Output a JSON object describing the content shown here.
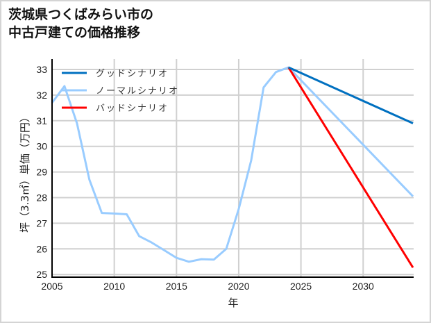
{
  "chart_data": {
    "type": "line",
    "title": "茨城県つくばみらい市の\n中古戸建ての価格推移",
    "title_lines": [
      "茨城県つくばみらい市の",
      "中古戸建ての価格推移"
    ],
    "xlabel": "年",
    "ylabel": "坪（3.3㎡）単価（万円）",
    "xlim": [
      2005,
      2034
    ],
    "ylim": [
      25,
      33
    ],
    "xticks": [
      2005,
      2010,
      2015,
      2020,
      2025,
      2030
    ],
    "yticks": [
      25,
      26,
      27,
      28,
      29,
      30,
      31,
      32,
      33
    ],
    "grid": true,
    "legend_position": "upper left",
    "series": [
      {
        "name": "グッドシナリオ",
        "color": "#0070c0",
        "x": [
          2024,
          2034
        ],
        "values": [
          33.08,
          30.9
        ]
      },
      {
        "name": "ノーマルシナリオ",
        "color": "#99ccff",
        "x": [
          2005,
          2006,
          2007,
          2008,
          2009,
          2010,
          2011,
          2012,
          2013,
          2014,
          2015,
          2016,
          2017,
          2018,
          2019,
          2020,
          2021,
          2022,
          2023,
          2024,
          2034
        ],
        "values": [
          31.7,
          32.35,
          30.9,
          28.7,
          27.4,
          27.38,
          27.35,
          26.5,
          26.25,
          25.95,
          25.65,
          25.5,
          25.6,
          25.58,
          26.0,
          27.55,
          29.45,
          32.3,
          32.9,
          33.08,
          28.05
        ]
      },
      {
        "name": "バッドシナリオ",
        "color": "#ff0000",
        "x": [
          2024,
          2034
        ],
        "values": [
          33.08,
          25.27
        ]
      }
    ]
  }
}
